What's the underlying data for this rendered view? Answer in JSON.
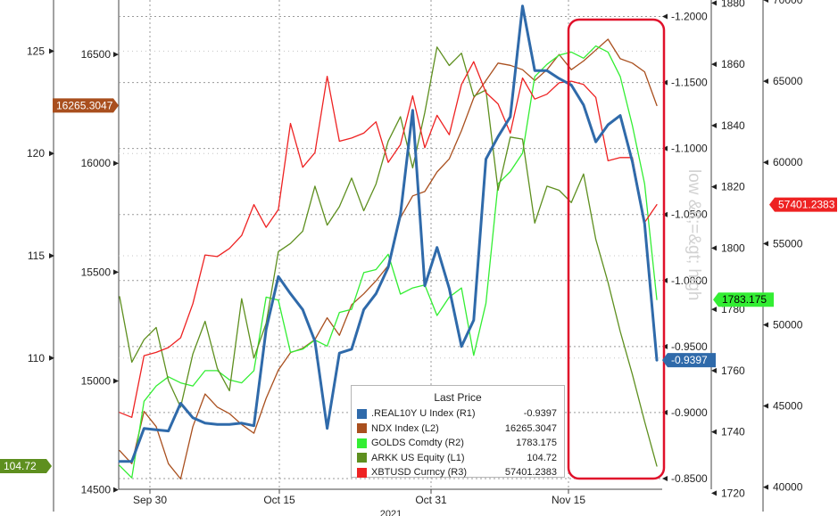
{
  "chart_data": {
    "type": "line",
    "title": "",
    "xlabel": "2021",
    "ylabel": "",
    "x_tick_labels": [
      "Sep 30",
      "Oct 15",
      "Oct 31",
      "Nov 15"
    ],
    "axis_watermark": "low &lt;=&gt; high",
    "axes": {
      "L1": {
        "range": [
          102.5,
          127.5
        ],
        "ticks": [
          110,
          115,
          120,
          125
        ]
      },
      "L2": {
        "range": [
          14400,
          16750
        ],
        "ticks": [
          14500,
          15000,
          15500,
          16000,
          16500
        ]
      },
      "R1": {
        "range": [
          -0.825,
          -1.2125
        ],
        "ticks": [
          "-0.8500",
          "-0.9000",
          "-0.9500",
          "-1.0000",
          "-1.0500",
          "-1.1000",
          "-1.1500",
          "-1.2000"
        ]
      },
      "R2": {
        "range": [
          1714,
          1881
        ],
        "ticks": [
          1720,
          1740,
          1760,
          1780,
          1800,
          1820,
          1840,
          1860,
          1880
        ]
      },
      "R3": {
        "range": [
          38500,
          70000
        ],
        "ticks": [
          40000,
          45000,
          50000,
          55000,
          60000,
          65000,
          70000
        ]
      }
    },
    "legend": {
      "title": "Last Price",
      "placement": "bottom-center",
      "entries": [
        {
          "name": ".REAL10Y U Index",
          "axis": "(R1)",
          "value": "-0.9397",
          "color": "#2f6aaa"
        },
        {
          "name": "NDX Index",
          "axis": "(L2)",
          "value": "16265.3047",
          "color": "#a94f1e"
        },
        {
          "name": "GOLDS Comdty",
          "axis": "(R2)",
          "value": "1783.175",
          "color": "#33ee33"
        },
        {
          "name": "ARKK US Equity",
          "axis": "(L1)",
          "value": "104.72",
          "color": "#5e8f1f"
        },
        {
          "name": "XBTUSD Curncy",
          "axis": "(R3)",
          "value": "57401.2383",
          "color": "#ee2222"
        }
      ]
    },
    "series": [
      {
        "name": ".REAL10Y U Index",
        "axis": "R1",
        "color": "#2f6aaa",
        "values": [
          -0.863,
          -0.863,
          -0.888,
          -0.887,
          -0.886,
          -0.907,
          -0.896,
          -0.892,
          -0.891,
          -0.891,
          -0.892,
          -0.89,
          -0.963,
          -1.003,
          -0.99,
          -0.978,
          -0.954,
          -0.888,
          -0.945,
          -0.948,
          -0.978,
          -0.99,
          -1.01,
          -1.05,
          -1.129,
          -0.996,
          -1.025,
          -0.994,
          -0.95,
          -0.97,
          -1.092,
          -1.109,
          -1.124,
          -1.208,
          -1.159,
          -1.159,
          -1.153,
          -1.148,
          -1.133,
          -1.105,
          -1.118,
          -1.125,
          -1.09,
          -1.043,
          -0.9397
        ]
      },
      {
        "name": "NDX Index",
        "axis": "L2",
        "color": "#a94f1e",
        "values": [
          14680,
          14620,
          14860,
          14790,
          14620,
          14550,
          14790,
          14940,
          14880,
          14850,
          14800,
          14760,
          14920,
          15050,
          15130,
          15150,
          15190,
          15290,
          15210,
          15350,
          15400,
          15460,
          15530,
          15750,
          15850,
          15870,
          15960,
          16020,
          16150,
          16300,
          16380,
          16460,
          16450,
          16430,
          16380,
          16430,
          16500,
          16430,
          16470,
          16520,
          16570,
          16480,
          16460,
          16420,
          16265.3047
        ]
      },
      {
        "name": "GOLDS Comdty",
        "axis": "R2",
        "color": "#33ee33",
        "values": [
          1729,
          1725,
          1750,
          1755,
          1758,
          1756,
          1755,
          1760,
          1760,
          1757,
          1756,
          1760,
          1784,
          1783,
          1766,
          1767,
          1770,
          1768,
          1779,
          1780,
          1792,
          1793,
          1798,
          1785,
          1787,
          1788,
          1778,
          1784,
          1787,
          1765,
          1782,
          1821,
          1825,
          1831,
          1856,
          1860,
          1863,
          1864,
          1862,
          1866,
          1864,
          1856,
          1840,
          1821,
          1783.175
        ]
      },
      {
        "name": "ARKK US Equity",
        "axis": "L1",
        "color": "#5e8f1f",
        "values": [
          113.0,
          109.8,
          110.9,
          111.5,
          108.9,
          107.6,
          110.2,
          111.8,
          109.5,
          108.4,
          112.9,
          110.0,
          111.7,
          115.2,
          115.6,
          116.2,
          118.4,
          116.5,
          117.4,
          118.8,
          117.2,
          118.5,
          120.6,
          121.8,
          119.3,
          122.0,
          125.2,
          124.3,
          124.9,
          122.8,
          123.1,
          118.2,
          120.8,
          120.7,
          116.6,
          118.4,
          118.2,
          117.6,
          119.0,
          115.8,
          113.7,
          111.3,
          109.2,
          106.9,
          104.72
        ]
      },
      {
        "name": "XBTUSD Curncy",
        "axis": "R3",
        "color": "#ee2222",
        "values": [
          44600,
          44300,
          48100,
          48300,
          48600,
          49200,
          51300,
          54300,
          54200,
          54700,
          55500,
          57400,
          56000,
          57100,
          62400,
          59700,
          60600,
          65300,
          61300,
          61500,
          61800,
          62500,
          60000,
          61100,
          64100,
          60900,
          62900,
          61700,
          64800,
          66200,
          64300,
          63600,
          61800,
          65200,
          63900,
          64200,
          64900,
          65000,
          64800,
          64000,
          60100,
          60300,
          60300,
          56300,
          57401.2383
        ]
      }
    ]
  }
}
